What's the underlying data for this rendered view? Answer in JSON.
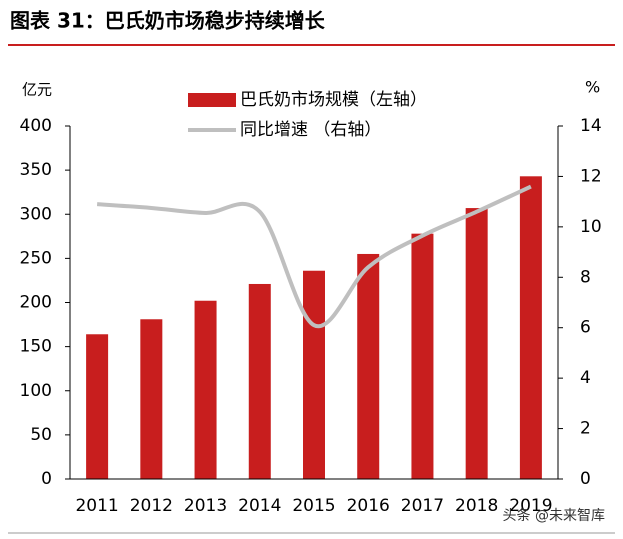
{
  "chart_data": {
    "type": "bar-line",
    "title": "图表 31：巴氏奶市场稳步持续增长",
    "y_label": "亿元",
    "y2_label": "%",
    "categories": [
      "2011",
      "2012",
      "2013",
      "2014",
      "2015",
      "2016",
      "2017",
      "2018",
      "2019"
    ],
    "series": [
      {
        "name": "巴氏奶市场规模（左轴）",
        "type": "bar",
        "color": "#c81e1e",
        "values": [
          164,
          181,
          202,
          221,
          236,
          255,
          278,
          307,
          343
        ]
      },
      {
        "name": "同比增速 （右轴）",
        "type": "line",
        "axis": "y2",
        "color": "#bfbfbf",
        "values": [
          10.9,
          10.75,
          10.55,
          10.6,
          6.1,
          8.4,
          9.65,
          10.6,
          11.6
        ]
      }
    ],
    "ylim": [
      0,
      400
    ],
    "yticks": [
      0,
      50,
      100,
      150,
      200,
      250,
      300,
      350,
      400
    ],
    "y2lim": [
      0,
      14
    ],
    "y2ticks": [
      0,
      2,
      4,
      6,
      8,
      10,
      12,
      14
    ],
    "watermark": "头条 @未来智库"
  }
}
